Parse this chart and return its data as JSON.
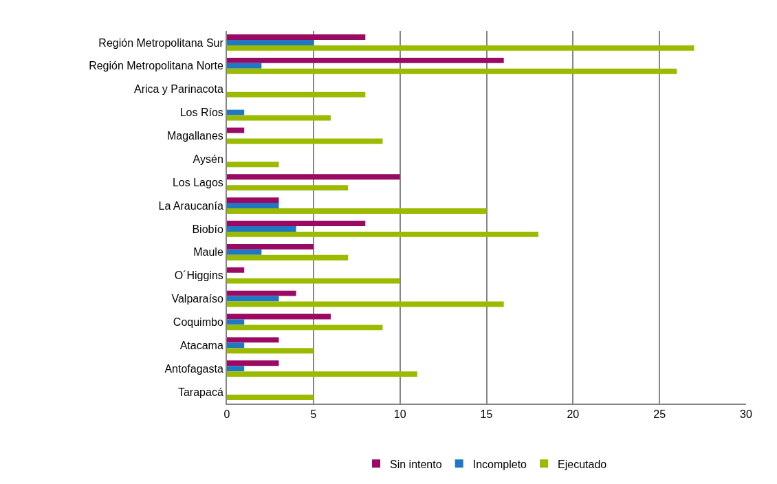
{
  "chart_data": {
    "type": "bar",
    "orientation": "horizontal",
    "categories": [
      "Región Metropolitana Sur",
      "Región Metropolitana Norte",
      "Arica y Parinacota",
      "Los Ríos",
      "Magallanes",
      "Aysén",
      "Los Lagos",
      "La Araucanía",
      "Biobío",
      "Maule",
      "O´Higgins",
      "Valparaíso",
      "Coquimbo",
      "Atacama",
      "Antofagasta",
      "Tarapacá"
    ],
    "series": [
      {
        "name": "Sin intento",
        "color": "#9b0a62",
        "values": [
          8,
          16,
          null,
          null,
          1,
          null,
          10,
          3,
          8,
          5,
          1,
          4,
          6,
          3,
          3,
          null
        ]
      },
      {
        "name": "Incompleto",
        "color": "#1f78c1",
        "values": [
          5,
          2,
          null,
          1,
          null,
          null,
          null,
          3,
          4,
          2,
          null,
          3,
          1,
          1,
          1,
          null
        ]
      },
      {
        "name": "Ejecutado",
        "color": "#9bbb00",
        "values": [
          27,
          26,
          8,
          6,
          9,
          3,
          7,
          15,
          18,
          7,
          10,
          16,
          9,
          5,
          11,
          5
        ]
      }
    ],
    "xlim": [
      0,
      30
    ],
    "xticks": [
      0,
      5,
      10,
      15,
      20,
      25,
      30
    ],
    "grid": "x",
    "legend": "bottom"
  }
}
